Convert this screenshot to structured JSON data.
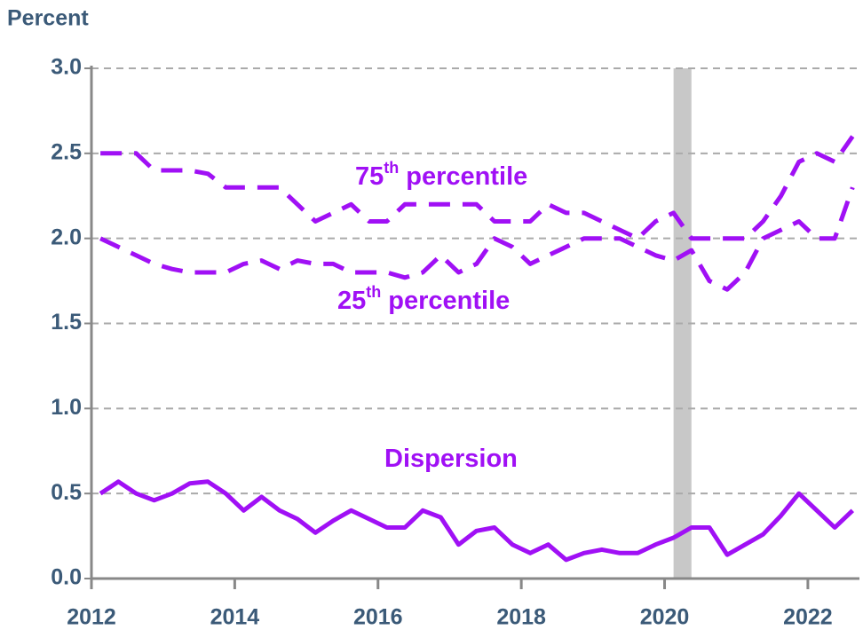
{
  "chart_data": {
    "type": "line",
    "y_axis_label": "Percent",
    "xlim": [
      2012,
      2022.72
    ],
    "ylim": [
      0,
      3.0
    ],
    "xticks": [
      2012,
      2014,
      2016,
      2018,
      2020,
      2022
    ],
    "yticks": [
      {
        "value": 0,
        "label": "0.0"
      },
      {
        "value": 0.5,
        "label": "0.5"
      },
      {
        "value": 1,
        "label": "1.0"
      },
      {
        "value": 1.5,
        "label": "1.5"
      },
      {
        "value": 2,
        "label": "2.0"
      },
      {
        "value": 2.5,
        "label": "2.5"
      },
      {
        "value": 3,
        "label": "3.0"
      }
    ],
    "grid": true,
    "shaded_region": {
      "x": [
        2020.125,
        2020.375
      ],
      "color": "#c8c8c8"
    },
    "x": [
      2012.125,
      2012.375,
      2012.625,
      2012.875,
      2013.125,
      2013.375,
      2013.625,
      2013.875,
      2014.125,
      2014.375,
      2014.625,
      2014.875,
      2015.125,
      2015.375,
      2015.625,
      2015.875,
      2016.125,
      2016.375,
      2016.625,
      2016.875,
      2017.125,
      2017.375,
      2017.625,
      2017.875,
      2018.125,
      2018.375,
      2018.625,
      2018.875,
      2019.125,
      2019.375,
      2019.625,
      2019.875,
      2020.125,
      2020.375,
      2020.625,
      2020.875,
      2021.125,
      2021.375,
      2021.625,
      2021.875,
      2022.125,
      2022.375,
      2022.625
    ],
    "series": [
      {
        "color": "#a010f5",
        "style": "dashed",
        "annotation": {
          "text": "75",
          "superscript": "th",
          "suffix": "percentile"
        },
        "values": [
          2.5,
          2.5,
          2.5,
          2.4,
          2.4,
          2.4,
          2.38,
          2.3,
          2.3,
          2.3,
          2.3,
          2.2,
          2.1,
          2.15,
          2.2,
          2.1,
          2.1,
          2.2,
          2.2,
          2.2,
          2.2,
          2.2,
          2.1,
          2.1,
          2.1,
          2.2,
          2.15,
          2.15,
          2.1,
          2.05,
          2.0,
          2.1,
          2.15,
          2.0,
          2.0,
          2.0,
          2.0,
          2.1,
          2.25,
          2.45,
          2.5,
          2.45,
          2.6
        ]
      },
      {
        "color": "#a010f5",
        "style": "dashed",
        "annotation": {
          "text": "25",
          "superscript": "th",
          "suffix": "percentile"
        },
        "values": [
          2.0,
          1.95,
          1.9,
          1.85,
          1.82,
          1.8,
          1.8,
          1.8,
          1.85,
          1.87,
          1.82,
          1.87,
          1.85,
          1.85,
          1.8,
          1.8,
          1.8,
          1.77,
          1.8,
          1.9,
          1.8,
          1.85,
          2.0,
          1.95,
          1.85,
          1.9,
          1.95,
          2.0,
          2.0,
          2.0,
          1.95,
          1.9,
          1.87,
          1.93,
          1.75,
          1.7,
          1.8,
          2.0,
          2.05,
          2.1,
          2.0,
          2.0,
          2.3
        ]
      },
      {
        "color": "#a010f5",
        "style": "solid",
        "annotation": {
          "text": "Dispersion"
        },
        "values": [
          0.5,
          0.57,
          0.5,
          0.46,
          0.5,
          0.56,
          0.57,
          0.5,
          0.4,
          0.48,
          0.4,
          0.35,
          0.27,
          0.34,
          0.4,
          0.35,
          0.3,
          0.3,
          0.4,
          0.36,
          0.2,
          0.28,
          0.3,
          0.2,
          0.15,
          0.2,
          0.11,
          0.15,
          0.17,
          0.15,
          0.15,
          0.2,
          0.24,
          0.3,
          0.3,
          0.14,
          0.2,
          0.26,
          0.37,
          0.5,
          0.4,
          0.3,
          0.4
        ]
      }
    ]
  }
}
